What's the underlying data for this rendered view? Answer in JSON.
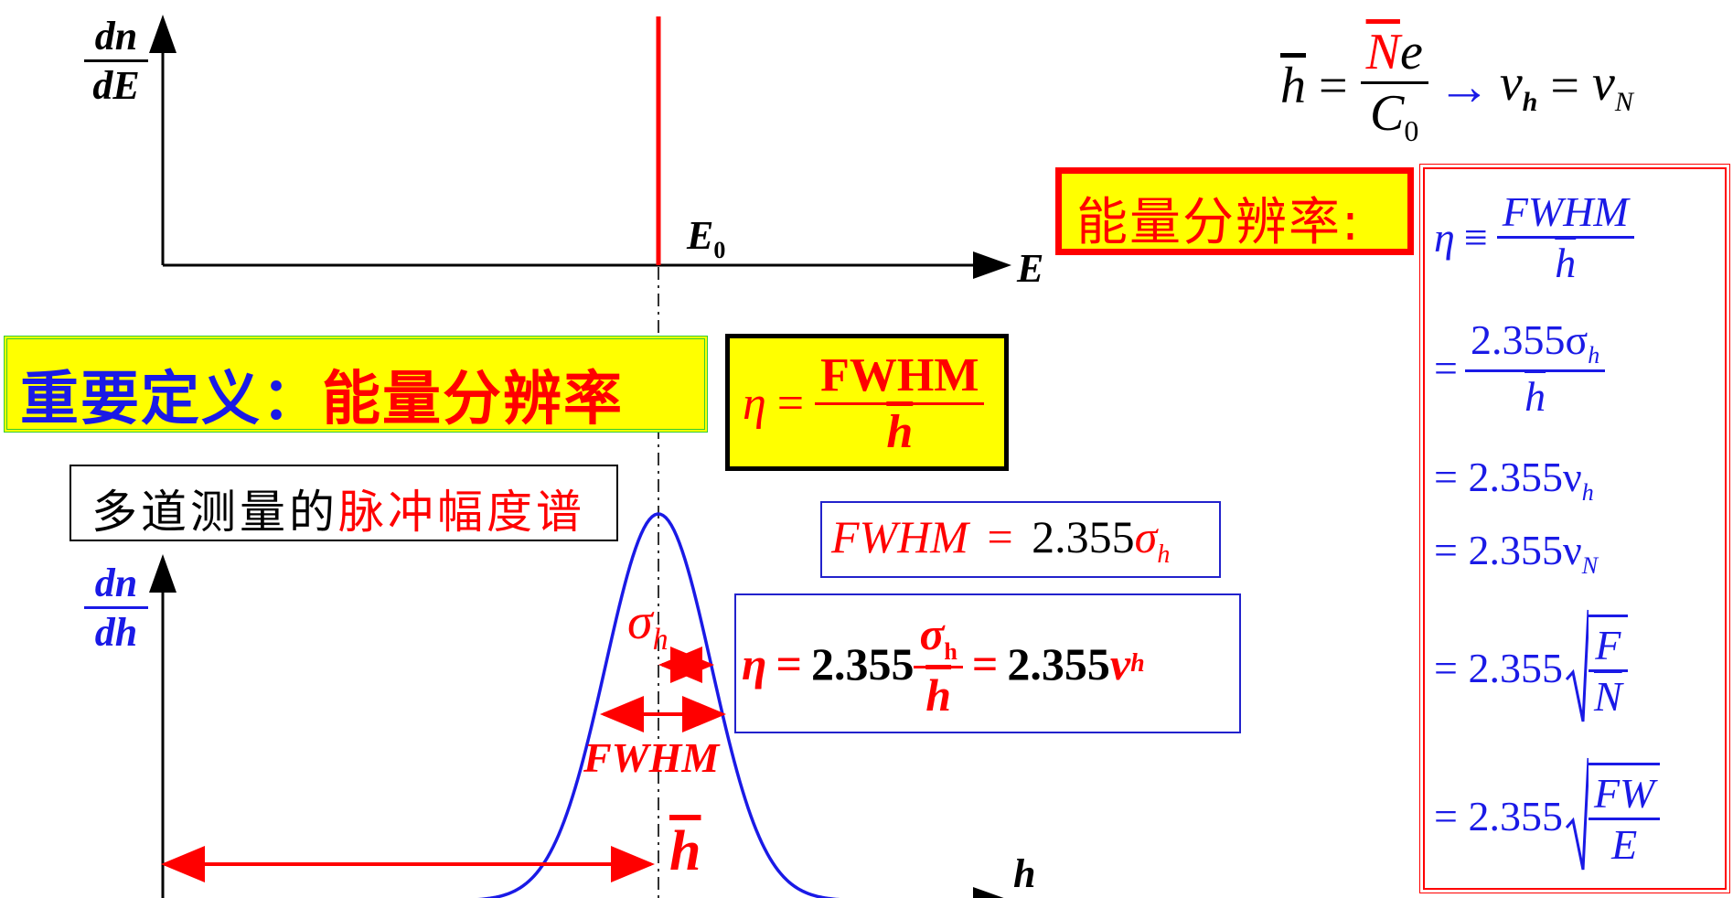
{
  "colors": {
    "red": "#ff0000",
    "blue": "#1a1ae6",
    "yellow": "#ffff00",
    "green": "#33cc33",
    "black": "#000000"
  },
  "top_plot": {
    "ylabel_num": "dn",
    "ylabel_den": "dE",
    "xlabel": "E",
    "peak_label": "E",
    "peak_sub": "0"
  },
  "bottom_plot": {
    "ylabel_num": "dn",
    "ylabel_den": "dh",
    "xlabel": "h",
    "sigma_label": "σ",
    "sigma_sub": "h",
    "fwhm_label": "FWHM",
    "hbar_label": "h"
  },
  "formula_top": {
    "lhs": "h",
    "eq": "=",
    "num_N": "N",
    "num_e": "e",
    "den": "C",
    "den_sub": "0",
    "arrow": "→",
    "nu": "ν",
    "nu_sub_h": "h",
    "eq2": "=",
    "nu2": "ν",
    "nu_sub_N": "N"
  },
  "banner": {
    "part1": "重要定义：",
    "part2": "能量分辨率"
  },
  "eta_box": {
    "eta": "η",
    "eq": "=",
    "num": "FWHM",
    "den": "h"
  },
  "side_title": "能量分辨率:",
  "label_box": {
    "part1": "多道测量的",
    "part2": "脉冲幅度谱"
  },
  "fwhm_eq": {
    "lhs": "FWHM",
    "eq": "=",
    "coef": "2.355",
    "sigma": "σ",
    "sub": "h"
  },
  "eta_eq": {
    "eta": "η",
    "eq": "=",
    "coef": "2.355",
    "sigma": "σ",
    "sigma_sub": "h",
    "den": "h",
    "eq2": "=",
    "coef2": "2.355",
    "nu": "ν",
    "nu_sub": "h"
  },
  "right_panel": {
    "row1_eta": "η",
    "row1_equiv": "≡",
    "row1_num": "FWHM",
    "row1_den": "h",
    "row2_eq": "=",
    "row2_num": "2.355σ",
    "row2_num_sub": "h",
    "row2_den": "h",
    "row3": "= 2.355ν",
    "row3_sub": "h",
    "row4": "= 2.355ν",
    "row4_sub": "N",
    "row5": "= 2.355",
    "row5_num": "F",
    "row5_den": "N",
    "row6": "= 2.355",
    "row6_num": "FW",
    "row6_den": "E"
  }
}
